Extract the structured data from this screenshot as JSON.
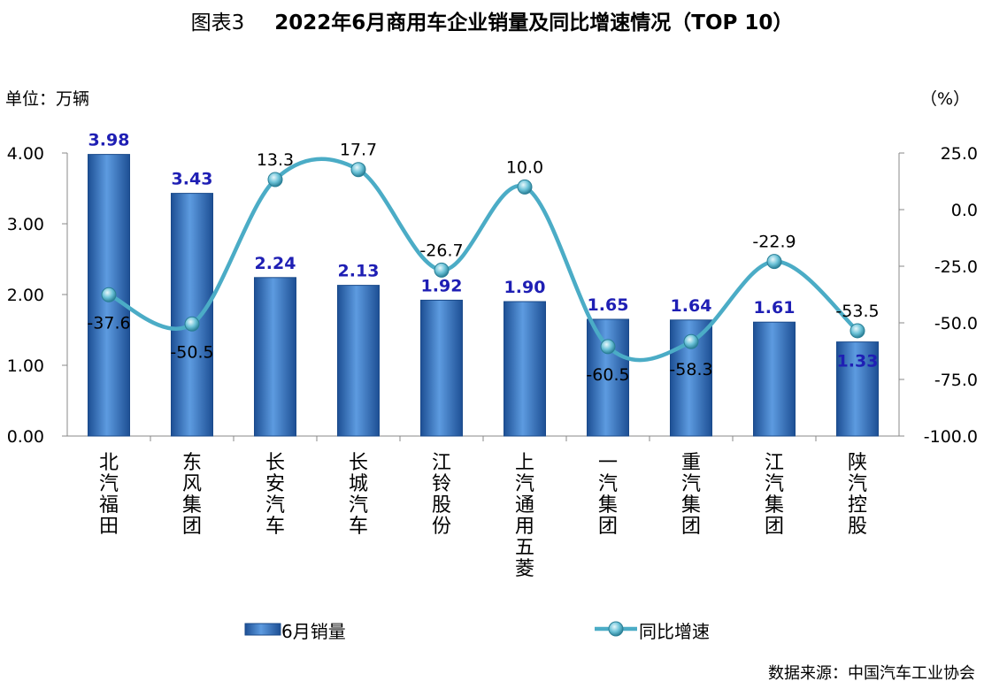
{
  "title": {
    "figure_no": "图表3",
    "text": "2022年6月商用车企业销量及同比增速情况（TOP 10）"
  },
  "unit_left": "单位：万辆",
  "unit_right": "（%）",
  "source": "数据来源：中国汽车工业协会",
  "chart_data": {
    "type": "bar+line",
    "categories": [
      "北汽福田",
      "东风集团",
      "长安汽车",
      "长城汽车",
      "江铃股份",
      "上汽通用五菱",
      "一汽集团",
      "重汽集团",
      "江汽集团",
      "陕汽控股"
    ],
    "series": [
      {
        "name": "6月销量",
        "type": "bar",
        "axis": "left",
        "values": [
          3.98,
          3.43,
          2.24,
          2.13,
          1.92,
          1.9,
          1.65,
          1.64,
          1.61,
          1.33
        ],
        "labels": [
          "3.98",
          "3.43",
          "2.24",
          "2.13",
          "1.92",
          "1.90",
          "1.65",
          "1.64",
          "1.61",
          "1.33"
        ],
        "color": "#3a7bc8"
      },
      {
        "name": "同比增速",
        "type": "line",
        "axis": "right",
        "values": [
          -37.6,
          -50.5,
          13.3,
          17.7,
          -26.7,
          10.0,
          -60.5,
          -58.3,
          -22.9,
          -53.5
        ],
        "labels": [
          "-37.6",
          "-50.5",
          "13.3",
          "17.7",
          "-26.7",
          "10.0",
          "-60.5",
          "-58.3",
          "-22.9",
          "-53.5"
        ],
        "color": "#4bacc6"
      }
    ],
    "left_axis": {
      "ylim": [
        0,
        4
      ],
      "ticks": [
        "0.00",
        "1.00",
        "2.00",
        "3.00",
        "4.00"
      ]
    },
    "right_axis": {
      "ylim": [
        -100,
        25
      ],
      "ticks": [
        "-100.0",
        "-75.0",
        "-50.0",
        "-25.0",
        "0.0",
        "25.0"
      ]
    },
    "legend": [
      "6月销量",
      "同比增速"
    ],
    "label_color": "#1f1fb4"
  }
}
